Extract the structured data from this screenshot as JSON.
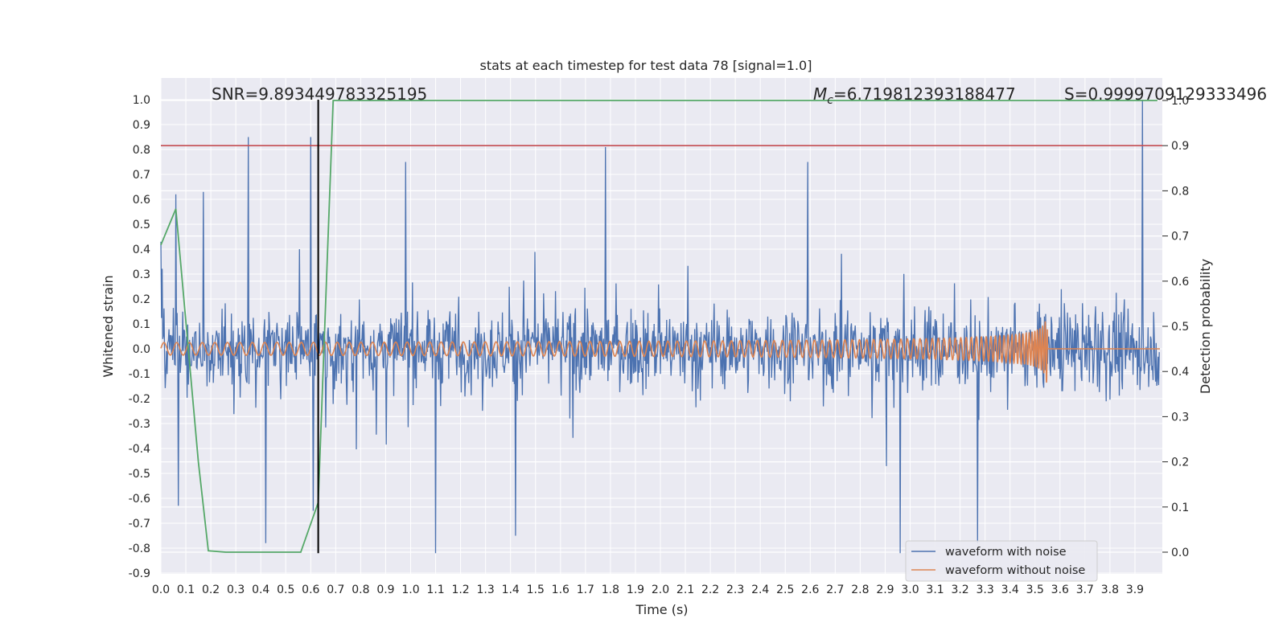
{
  "chart_data": {
    "type": "line",
    "title": "stats at each timestep for test data 78 [signal=1.0]",
    "xlabel": "Time (s)",
    "ylabel": "Whitened strain",
    "y2label": "Detection probability",
    "xlim": [
      0.0,
      4.0
    ],
    "ylim": [
      -0.9,
      1.08
    ],
    "y2lim": [
      -0.045,
      1.0
    ],
    "grid": true,
    "legend_position": "bottom-right",
    "annotations": {
      "snr": "SNR=9.893449783325195",
      "mc_symbol": "M",
      "mc_sub": "c",
      "mc_value": "=6.719812393188477",
      "s": "S=0.9999709129333496"
    },
    "xticks": [
      "0.0",
      "0.1",
      "0.2",
      "0.3",
      "0.4",
      "0.5",
      "0.6",
      "0.7",
      "0.8",
      "0.9",
      "1.0",
      "1.1",
      "1.2",
      "1.3",
      "1.4",
      "1.5",
      "1.6",
      "1.7",
      "1.8",
      "1.9",
      "2.0",
      "2.1",
      "2.2",
      "2.3",
      "2.4",
      "2.5",
      "2.6",
      "2.7",
      "2.8",
      "2.9",
      "3.0",
      "3.1",
      "3.2",
      "3.3",
      "3.4",
      "3.5",
      "3.6",
      "3.7",
      "3.8",
      "3.9"
    ],
    "yticks": [
      "1.0",
      "0.9",
      "0.8",
      "0.7",
      "0.6",
      "0.5",
      "0.4",
      "0.3",
      "0.2",
      "0.1",
      "0.0",
      "-0.1",
      "-0.2",
      "-0.3",
      "-0.4",
      "-0.5",
      "-0.6",
      "-0.7",
      "-0.8",
      "-0.9"
    ],
    "y2ticks": [
      "1.0",
      "0.9",
      "0.8",
      "0.7",
      "0.6",
      "0.5",
      "0.4",
      "0.3",
      "0.2",
      "0.1",
      "0.0"
    ],
    "threshold_line": {
      "y2": 0.9,
      "color": "#c44e52"
    },
    "peak_time_line": {
      "x": 0.63,
      "y_from": -0.82,
      "y_to": 1.0,
      "color": "#000000"
    },
    "series": [
      {
        "name": "waveform with noise",
        "color": "#4c72b0",
        "description_only": "noise",
        "noise_envelope": 0.28,
        "spikes": [
          {
            "x": 0.0,
            "y": 0.43
          },
          {
            "x": 0.06,
            "y": 0.62
          },
          {
            "x": 0.07,
            "y": -0.63
          },
          {
            "x": 0.17,
            "y": 0.63
          },
          {
            "x": 0.35,
            "y": 0.85
          },
          {
            "x": 0.42,
            "y": -0.78
          },
          {
            "x": 0.6,
            "y": 0.85
          },
          {
            "x": 0.61,
            "y": -0.65
          },
          {
            "x": 0.98,
            "y": 0.75
          },
          {
            "x": 1.1,
            "y": -0.82
          },
          {
            "x": 1.42,
            "y": -0.75
          },
          {
            "x": 1.78,
            "y": 0.81
          },
          {
            "x": 2.59,
            "y": 0.75
          },
          {
            "x": 2.96,
            "y": -0.82
          },
          {
            "x": 3.27,
            "y": -0.78
          },
          {
            "x": 3.93,
            "y": 1.0
          }
        ]
      },
      {
        "name": "waveform without noise",
        "color": "#dd8452",
        "chirp": {
          "amplitude_start": 0.025,
          "amplitude_end": 0.3,
          "t_merger": 3.55,
          "f_start": 60,
          "f_end": 300
        }
      },
      {
        "name": "",
        "color": "#55a868",
        "axis": "y2",
        "x": [
          0.0,
          0.06,
          0.15,
          0.19,
          0.26,
          0.56,
          0.63,
          0.69,
          3.99
        ],
        "y": [
          0.68,
          0.76,
          0.2,
          0.003,
          0.0,
          0.0,
          0.11,
          1.0,
          1.0
        ]
      }
    ]
  }
}
